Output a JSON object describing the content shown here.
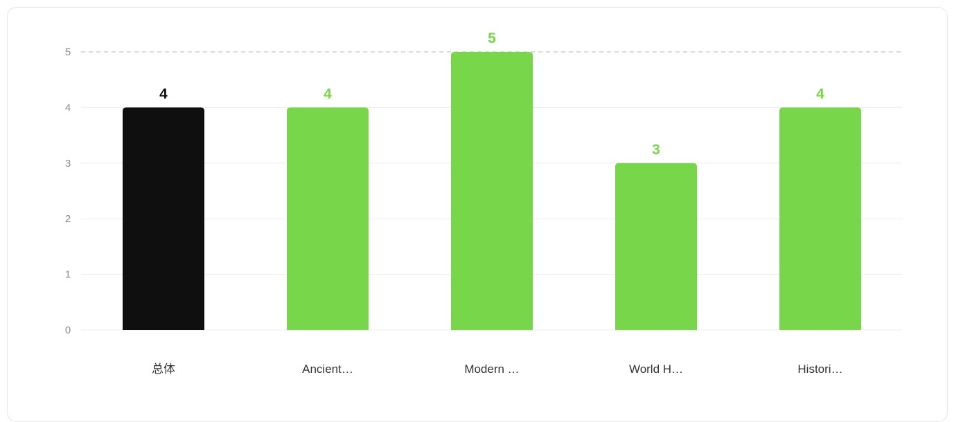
{
  "chart_data": {
    "type": "bar",
    "categories": [
      "总体",
      "Ancient…",
      "Modern …",
      "World H…",
      "Histori…"
    ],
    "values": [
      4,
      4,
      5,
      3,
      4
    ],
    "bar_colors": [
      "#0f0f0f",
      "#78d64b",
      "#78d64b",
      "#78d64b",
      "#78d64b"
    ],
    "label_colors": [
      "#0f0f0f",
      "#78d64b",
      "#78d64b",
      "#78d64b",
      "#78d64b"
    ],
    "ylim": [
      0,
      5
    ],
    "yticks": [
      "0",
      "1",
      "2",
      "3",
      "4",
      "5"
    ],
    "max_line": "dashed",
    "grid": true,
    "title": "",
    "xlabel": "",
    "ylabel": ""
  },
  "colors": {
    "grid": "#ececec",
    "dashed_line": "#cfcfcf",
    "card_border": "#e6e6e6"
  }
}
